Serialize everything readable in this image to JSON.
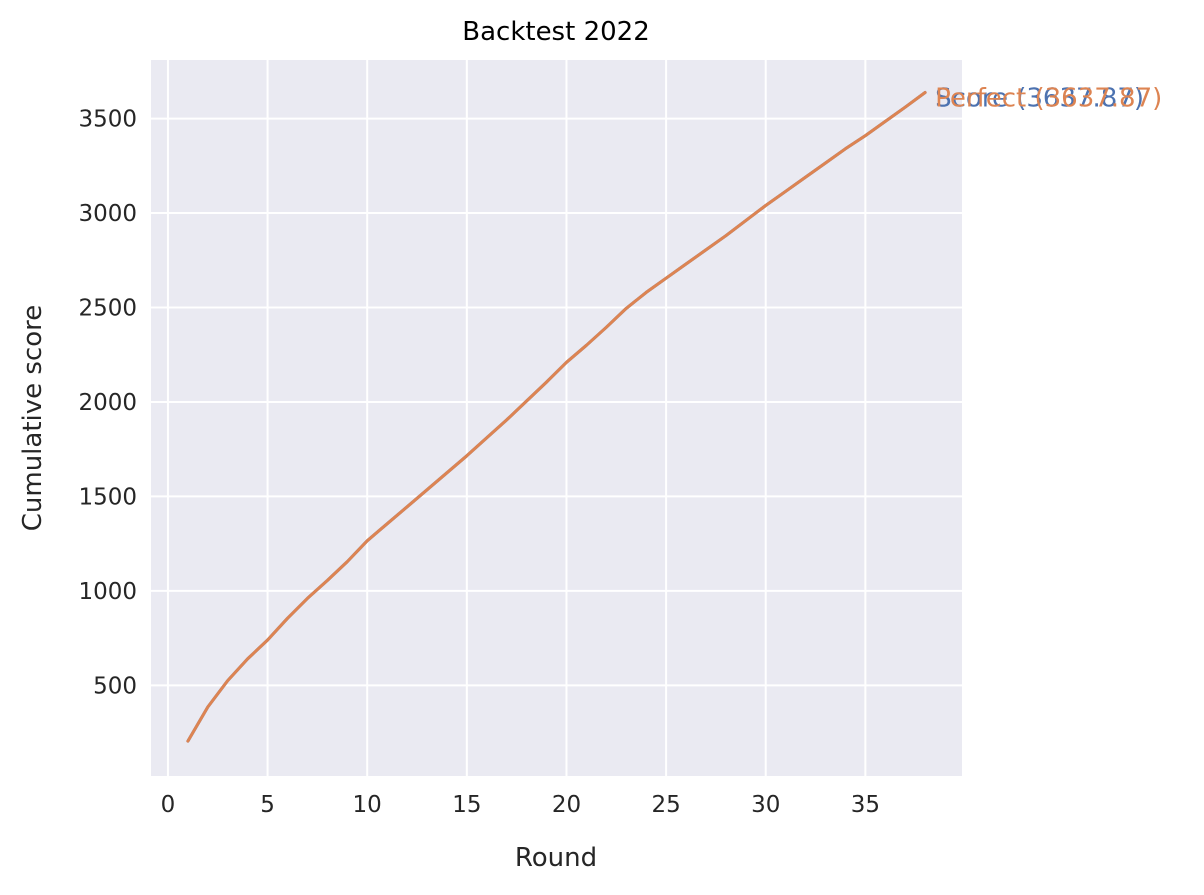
{
  "chart_data": {
    "type": "line",
    "title": "Backtest 2022",
    "xlabel": "Round",
    "ylabel": "Cumulative score",
    "xlim": [
      -0.85,
      39.85
    ],
    "ylim": [
      20,
      3810
    ],
    "xticks": [
      0,
      5,
      10,
      15,
      20,
      25,
      30,
      35
    ],
    "yticks": [
      500,
      1000,
      1500,
      2000,
      2500,
      3000,
      3500
    ],
    "grid": true,
    "style": "seaborn-darkgrid",
    "x": [
      1,
      2,
      3,
      4,
      5,
      6,
      7,
      8,
      9,
      10,
      11,
      12,
      13,
      14,
      15,
      16,
      17,
      18,
      19,
      20,
      21,
      22,
      23,
      24,
      25,
      26,
      27,
      28,
      29,
      30,
      31,
      32,
      33,
      34,
      35,
      36,
      37,
      38
    ],
    "series": [
      {
        "name": "Score (3637.87)",
        "color": "#4c72b0",
        "values": [
          205,
          385,
          525,
          640,
          740,
          855,
          960,
          1055,
          1155,
          1265,
          1355,
          1445,
          1535,
          1625,
          1715,
          1810,
          1905,
          2005,
          2105,
          2210,
          2300,
          2395,
          2495,
          2580,
          2655,
          2730,
          2805,
          2880,
          2960,
          3040,
          3115,
          3190,
          3265,
          3340,
          3410,
          3485,
          3560,
          3637.87
        ]
      },
      {
        "name": "Perfect (3637.87)",
        "color": "#dd8452",
        "values": [
          205,
          385,
          525,
          640,
          740,
          855,
          960,
          1055,
          1155,
          1265,
          1355,
          1445,
          1535,
          1625,
          1715,
          1810,
          1905,
          2005,
          2105,
          2210,
          2300,
          2395,
          2495,
          2580,
          2655,
          2730,
          2805,
          2880,
          2960,
          3040,
          3115,
          3190,
          3265,
          3340,
          3410,
          3485,
          3560,
          3637.87
        ]
      }
    ]
  }
}
